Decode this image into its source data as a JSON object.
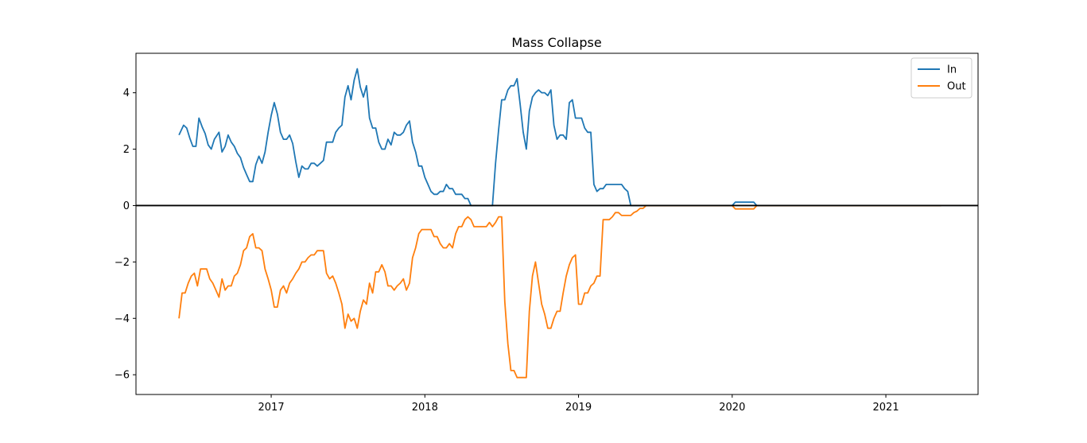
{
  "chart_data": {
    "type": "line",
    "title": "Mass Collapse",
    "xlabel": "",
    "ylabel": "",
    "x_ticks": [
      "2017",
      "2018",
      "2019",
      "2020",
      "2021"
    ],
    "y_ticks": [
      "4",
      "2",
      "0",
      "−2",
      "−4",
      "−6"
    ],
    "xlim": [
      2016.12,
      2021.6
    ],
    "ylim": [
      -6.7,
      5.4
    ],
    "grid": false,
    "legend_position": "top-right",
    "zero_line": true,
    "series": [
      {
        "name": "In",
        "color": "#1f77b4",
        "points": [
          [
            2016.4,
            2.5
          ],
          [
            2016.43,
            2.85
          ],
          [
            2016.45,
            2.75
          ],
          [
            2016.47,
            2.4
          ],
          [
            2016.49,
            2.1
          ],
          [
            2016.51,
            2.1
          ],
          [
            2016.53,
            3.1
          ],
          [
            2016.55,
            2.8
          ],
          [
            2016.57,
            2.55
          ],
          [
            2016.59,
            2.15
          ],
          [
            2016.61,
            2.0
          ],
          [
            2016.63,
            2.35
          ],
          [
            2016.66,
            2.6
          ],
          [
            2016.68,
            1.9
          ],
          [
            2016.7,
            2.1
          ],
          [
            2016.72,
            2.5
          ],
          [
            2016.74,
            2.25
          ],
          [
            2016.76,
            2.1
          ],
          [
            2016.78,
            1.85
          ],
          [
            2016.8,
            1.7
          ],
          [
            2016.82,
            1.35
          ],
          [
            2016.84,
            1.1
          ],
          [
            2016.86,
            0.85
          ],
          [
            2016.88,
            0.85
          ],
          [
            2016.9,
            1.45
          ],
          [
            2016.92,
            1.75
          ],
          [
            2016.94,
            1.5
          ],
          [
            2016.96,
            1.9
          ],
          [
            2016.98,
            2.6
          ],
          [
            2017.0,
            3.2
          ],
          [
            2017.02,
            3.65
          ],
          [
            2017.04,
            3.25
          ],
          [
            2017.06,
            2.6
          ],
          [
            2017.08,
            2.35
          ],
          [
            2017.1,
            2.35
          ],
          [
            2017.12,
            2.5
          ],
          [
            2017.14,
            2.2
          ],
          [
            2017.16,
            1.55
          ],
          [
            2017.18,
            1.0
          ],
          [
            2017.2,
            1.4
          ],
          [
            2017.22,
            1.3
          ],
          [
            2017.24,
            1.3
          ],
          [
            2017.26,
            1.5
          ],
          [
            2017.28,
            1.5
          ],
          [
            2017.3,
            1.4
          ],
          [
            2017.32,
            1.5
          ],
          [
            2017.34,
            1.6
          ],
          [
            2017.36,
            2.25
          ],
          [
            2017.38,
            2.25
          ],
          [
            2017.4,
            2.25
          ],
          [
            2017.42,
            2.6
          ],
          [
            2017.44,
            2.75
          ],
          [
            2017.46,
            2.85
          ],
          [
            2017.48,
            3.85
          ],
          [
            2017.5,
            4.25
          ],
          [
            2017.52,
            3.75
          ],
          [
            2017.54,
            4.45
          ],
          [
            2017.56,
            4.85
          ],
          [
            2017.58,
            4.2
          ],
          [
            2017.6,
            3.85
          ],
          [
            2017.62,
            4.25
          ],
          [
            2017.64,
            3.1
          ],
          [
            2017.66,
            2.75
          ],
          [
            2017.68,
            2.75
          ],
          [
            2017.7,
            2.25
          ],
          [
            2017.72,
            2.0
          ],
          [
            2017.74,
            2.0
          ],
          [
            2017.76,
            2.35
          ],
          [
            2017.78,
            2.15
          ],
          [
            2017.8,
            2.6
          ],
          [
            2017.82,
            2.5
          ],
          [
            2017.84,
            2.5
          ],
          [
            2017.86,
            2.6
          ],
          [
            2017.88,
            2.85
          ],
          [
            2017.9,
            3.0
          ],
          [
            2017.92,
            2.25
          ],
          [
            2017.94,
            1.9
          ],
          [
            2017.96,
            1.4
          ],
          [
            2017.98,
            1.4
          ],
          [
            2018.0,
            1.0
          ],
          [
            2018.02,
            0.75
          ],
          [
            2018.04,
            0.5
          ],
          [
            2018.06,
            0.4
          ],
          [
            2018.08,
            0.4
          ],
          [
            2018.1,
            0.5
          ],
          [
            2018.12,
            0.5
          ],
          [
            2018.14,
            0.75
          ],
          [
            2018.16,
            0.6
          ],
          [
            2018.18,
            0.6
          ],
          [
            2018.2,
            0.4
          ],
          [
            2018.22,
            0.4
          ],
          [
            2018.24,
            0.4
          ],
          [
            2018.26,
            0.25
          ],
          [
            2018.28,
            0.25
          ],
          [
            2018.3,
            0.0
          ],
          [
            2018.4,
            0.0
          ],
          [
            2018.44,
            0.0
          ],
          [
            2018.46,
            1.5
          ],
          [
            2018.48,
            2.7
          ],
          [
            2018.5,
            3.75
          ],
          [
            2018.52,
            3.75
          ],
          [
            2018.54,
            4.1
          ],
          [
            2018.56,
            4.25
          ],
          [
            2018.58,
            4.25
          ],
          [
            2018.6,
            4.5
          ],
          [
            2018.62,
            3.6
          ],
          [
            2018.64,
            2.6
          ],
          [
            2018.66,
            2.0
          ],
          [
            2018.68,
            3.35
          ],
          [
            2018.7,
            3.85
          ],
          [
            2018.72,
            4.0
          ],
          [
            2018.74,
            4.1
          ],
          [
            2018.76,
            4.0
          ],
          [
            2018.78,
            4.0
          ],
          [
            2018.8,
            3.9
          ],
          [
            2018.82,
            4.1
          ],
          [
            2018.84,
            2.85
          ],
          [
            2018.86,
            2.35
          ],
          [
            2018.88,
            2.5
          ],
          [
            2018.9,
            2.5
          ],
          [
            2018.92,
            2.35
          ],
          [
            2018.94,
            3.65
          ],
          [
            2018.96,
            3.75
          ],
          [
            2018.98,
            3.1
          ],
          [
            2019.0,
            3.1
          ],
          [
            2019.02,
            3.1
          ],
          [
            2019.04,
            2.75
          ],
          [
            2019.06,
            2.6
          ],
          [
            2019.08,
            2.6
          ],
          [
            2019.1,
            0.75
          ],
          [
            2019.12,
            0.5
          ],
          [
            2019.14,
            0.6
          ],
          [
            2019.16,
            0.6
          ],
          [
            2019.18,
            0.75
          ],
          [
            2019.2,
            0.75
          ],
          [
            2019.22,
            0.75
          ],
          [
            2019.24,
            0.75
          ],
          [
            2019.26,
            0.75
          ],
          [
            2019.28,
            0.75
          ],
          [
            2019.3,
            0.6
          ],
          [
            2019.32,
            0.5
          ],
          [
            2019.34,
            0.0
          ],
          [
            2020.0,
            0.0
          ],
          [
            2020.02,
            0.12
          ],
          [
            2020.14,
            0.12
          ],
          [
            2020.16,
            0.0
          ],
          [
            2021.36,
            0.0
          ]
        ]
      },
      {
        "name": "Out",
        "color": "#ff7f0e",
        "points": [
          [
            2016.4,
            -4.0
          ],
          [
            2016.42,
            -3.1
          ],
          [
            2016.44,
            -3.1
          ],
          [
            2016.46,
            -2.75
          ],
          [
            2016.48,
            -2.5
          ],
          [
            2016.5,
            -2.4
          ],
          [
            2016.52,
            -2.85
          ],
          [
            2016.54,
            -2.25
          ],
          [
            2016.56,
            -2.25
          ],
          [
            2016.58,
            -2.25
          ],
          [
            2016.6,
            -2.6
          ],
          [
            2016.62,
            -2.75
          ],
          [
            2016.64,
            -3.0
          ],
          [
            2016.66,
            -3.25
          ],
          [
            2016.68,
            -2.6
          ],
          [
            2016.7,
            -3.0
          ],
          [
            2016.72,
            -2.85
          ],
          [
            2016.74,
            -2.85
          ],
          [
            2016.76,
            -2.5
          ],
          [
            2016.78,
            -2.4
          ],
          [
            2016.8,
            -2.1
          ],
          [
            2016.82,
            -1.6
          ],
          [
            2016.84,
            -1.5
          ],
          [
            2016.86,
            -1.1
          ],
          [
            2016.88,
            -1.0
          ],
          [
            2016.9,
            -1.5
          ],
          [
            2016.92,
            -1.5
          ],
          [
            2016.94,
            -1.6
          ],
          [
            2016.96,
            -2.25
          ],
          [
            2016.98,
            -2.6
          ],
          [
            2017.0,
            -3.0
          ],
          [
            2017.02,
            -3.6
          ],
          [
            2017.04,
            -3.6
          ],
          [
            2017.06,
            -3.0
          ],
          [
            2017.08,
            -2.85
          ],
          [
            2017.1,
            -3.1
          ],
          [
            2017.12,
            -2.75
          ],
          [
            2017.14,
            -2.6
          ],
          [
            2017.16,
            -2.4
          ],
          [
            2017.18,
            -2.25
          ],
          [
            2017.2,
            -2.0
          ],
          [
            2017.22,
            -2.0
          ],
          [
            2017.24,
            -1.85
          ],
          [
            2017.26,
            -1.75
          ],
          [
            2017.28,
            -1.75
          ],
          [
            2017.3,
            -1.6
          ],
          [
            2017.32,
            -1.6
          ],
          [
            2017.34,
            -1.6
          ],
          [
            2017.36,
            -2.4
          ],
          [
            2017.38,
            -2.6
          ],
          [
            2017.4,
            -2.5
          ],
          [
            2017.42,
            -2.75
          ],
          [
            2017.44,
            -3.1
          ],
          [
            2017.46,
            -3.5
          ],
          [
            2017.48,
            -4.35
          ],
          [
            2017.5,
            -3.85
          ],
          [
            2017.52,
            -4.1
          ],
          [
            2017.54,
            -4.0
          ],
          [
            2017.56,
            -4.35
          ],
          [
            2017.58,
            -3.75
          ],
          [
            2017.6,
            -3.35
          ],
          [
            2017.62,
            -3.5
          ],
          [
            2017.64,
            -2.75
          ],
          [
            2017.66,
            -3.1
          ],
          [
            2017.68,
            -2.35
          ],
          [
            2017.7,
            -2.35
          ],
          [
            2017.72,
            -2.1
          ],
          [
            2017.74,
            -2.35
          ],
          [
            2017.76,
            -2.85
          ],
          [
            2017.78,
            -2.85
          ],
          [
            2017.8,
            -3.0
          ],
          [
            2017.82,
            -2.85
          ],
          [
            2017.84,
            -2.75
          ],
          [
            2017.86,
            -2.6
          ],
          [
            2017.88,
            -3.0
          ],
          [
            2017.9,
            -2.75
          ],
          [
            2017.92,
            -1.85
          ],
          [
            2017.94,
            -1.5
          ],
          [
            2017.96,
            -1.0
          ],
          [
            2017.98,
            -0.85
          ],
          [
            2018.0,
            -0.85
          ],
          [
            2018.02,
            -0.85
          ],
          [
            2018.04,
            -0.85
          ],
          [
            2018.06,
            -1.1
          ],
          [
            2018.08,
            -1.1
          ],
          [
            2018.1,
            -1.35
          ],
          [
            2018.12,
            -1.5
          ],
          [
            2018.14,
            -1.5
          ],
          [
            2018.16,
            -1.35
          ],
          [
            2018.18,
            -1.5
          ],
          [
            2018.2,
            -1.0
          ],
          [
            2018.22,
            -0.75
          ],
          [
            2018.24,
            -0.75
          ],
          [
            2018.26,
            -0.5
          ],
          [
            2018.28,
            -0.4
          ],
          [
            2018.3,
            -0.5
          ],
          [
            2018.32,
            -0.75
          ],
          [
            2018.34,
            -0.75
          ],
          [
            2018.36,
            -0.75
          ],
          [
            2018.38,
            -0.75
          ],
          [
            2018.4,
            -0.75
          ],
          [
            2018.42,
            -0.6
          ],
          [
            2018.44,
            -0.75
          ],
          [
            2018.46,
            -0.6
          ],
          [
            2018.48,
            -0.4
          ],
          [
            2018.5,
            -0.4
          ],
          [
            2018.52,
            -3.4
          ],
          [
            2018.54,
            -4.9
          ],
          [
            2018.56,
            -5.85
          ],
          [
            2018.58,
            -5.85
          ],
          [
            2018.6,
            -6.1
          ],
          [
            2018.62,
            -6.1
          ],
          [
            2018.64,
            -6.1
          ],
          [
            2018.66,
            -6.1
          ],
          [
            2018.68,
            -3.75
          ],
          [
            2018.7,
            -2.5
          ],
          [
            2018.72,
            -2.0
          ],
          [
            2018.74,
            -2.75
          ],
          [
            2018.76,
            -3.5
          ],
          [
            2018.78,
            -3.85
          ],
          [
            2018.8,
            -4.35
          ],
          [
            2018.82,
            -4.35
          ],
          [
            2018.84,
            -4.0
          ],
          [
            2018.86,
            -3.75
          ],
          [
            2018.88,
            -3.75
          ],
          [
            2018.9,
            -3.1
          ],
          [
            2018.92,
            -2.5
          ],
          [
            2018.94,
            -2.1
          ],
          [
            2018.96,
            -1.85
          ],
          [
            2018.98,
            -1.75
          ],
          [
            2019.0,
            -3.5
          ],
          [
            2019.02,
            -3.5
          ],
          [
            2019.04,
            -3.1
          ],
          [
            2019.06,
            -3.1
          ],
          [
            2019.08,
            -2.85
          ],
          [
            2019.1,
            -2.75
          ],
          [
            2019.12,
            -2.5
          ],
          [
            2019.14,
            -2.5
          ],
          [
            2019.16,
            -0.5
          ],
          [
            2019.18,
            -0.5
          ],
          [
            2019.2,
            -0.5
          ],
          [
            2019.22,
            -0.4
          ],
          [
            2019.24,
            -0.25
          ],
          [
            2019.26,
            -0.25
          ],
          [
            2019.28,
            -0.35
          ],
          [
            2019.3,
            -0.35
          ],
          [
            2019.32,
            -0.35
          ],
          [
            2019.34,
            -0.35
          ],
          [
            2019.36,
            -0.25
          ],
          [
            2019.38,
            -0.2
          ],
          [
            2019.4,
            -0.1
          ],
          [
            2019.42,
            -0.1
          ],
          [
            2019.44,
            0.0
          ],
          [
            2020.0,
            0.0
          ],
          [
            2020.02,
            -0.12
          ],
          [
            2020.14,
            -0.12
          ],
          [
            2020.16,
            0.0
          ],
          [
            2021.36,
            0.0
          ]
        ]
      }
    ]
  }
}
